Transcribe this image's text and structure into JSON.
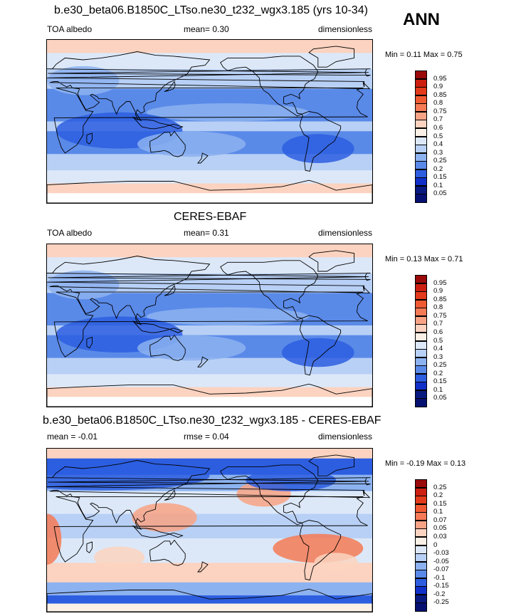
{
  "season": "ANN",
  "chart_data": [
    {
      "type": "heatmap",
      "title": "b.e30_beta06.B1850C_LTso.ne30_t232_wgx3.185 (yrs 10-34)",
      "left_label": "TOA albedo",
      "center_label": "mean=  0.30",
      "right_label": "dimensionless",
      "min_max": "Min =   0.11 Max =   0.75",
      "min": 0.11,
      "max": 0.75,
      "mean": 0.3,
      "colorbar_levels": [
        "0.95",
        "0.9",
        "0.85",
        "0.8",
        "0.75",
        "0.7",
        "0.6",
        "0.5",
        "0.4",
        "0.3",
        "0.25",
        "0.2",
        "0.15",
        "0.1",
        "0.05"
      ],
      "colorbar_colors": [
        "#9a0a0a",
        "#cc1f10",
        "#e23a1a",
        "#f05a32",
        "#f57a55",
        "#f8a385",
        "#fbd3c0",
        "#fbf0e6",
        "#dce8f8",
        "#b8d0f5",
        "#8cb2f0",
        "#5a8ae8",
        "#2d5ee0",
        "#1030c8",
        "#081a80",
        "#061070"
      ],
      "field_palette": "albedo"
    },
    {
      "type": "heatmap",
      "title": "CERES-EBAF",
      "left_label": "TOA albedo",
      "center_label": "mean=  0.31",
      "right_label": "dimensionless",
      "min_max": "Min =   0.13 Max =   0.71",
      "min": 0.13,
      "max": 0.71,
      "mean": 0.31,
      "colorbar_levels": [
        "0.95",
        "0.9",
        "0.85",
        "0.8",
        "0.75",
        "0.7",
        "0.6",
        "0.5",
        "0.4",
        "0.3",
        "0.25",
        "0.2",
        "0.15",
        "0.1",
        "0.05"
      ],
      "colorbar_colors": [
        "#9a0a0a",
        "#cc1f10",
        "#e23a1a",
        "#f05a32",
        "#f57a55",
        "#f8a385",
        "#fbd3c0",
        "#fbf0e6",
        "#dce8f8",
        "#b8d0f5",
        "#8cb2f0",
        "#5a8ae8",
        "#2d5ee0",
        "#1030c8",
        "#081a80",
        "#061070"
      ],
      "field_palette": "albedo"
    },
    {
      "type": "heatmap",
      "title": "b.e30_beta06.B1850C_LTso.ne30_t232_wgx3.185 - CERES-EBAF",
      "left_label": "mean =  -0.01",
      "center_label": "rmse =  0.04",
      "right_label": "dimensionless",
      "min_max": "Min =  -0.19 Max =   0.13",
      "min": -0.19,
      "max": 0.13,
      "mean": -0.01,
      "rmse": 0.04,
      "colorbar_levels": [
        "0.25",
        "0.2",
        "0.15",
        "0.1",
        "0.07",
        "0.05",
        "0.03",
        "0",
        "-0.03",
        "-0.05",
        "-0.07",
        "-0.1",
        "-0.15",
        "-0.2",
        "-0.25"
      ],
      "colorbar_colors": [
        "#9a0a0a",
        "#cc1f10",
        "#e23a1a",
        "#f05a32",
        "#f57a55",
        "#f8a385",
        "#fbd3c0",
        "#fbf0e6",
        "#dce8f8",
        "#b8d0f5",
        "#8cb2f0",
        "#5a8ae8",
        "#2d5ee0",
        "#1030c8",
        "#081a80",
        "#061070"
      ],
      "field_palette": "diff"
    }
  ]
}
